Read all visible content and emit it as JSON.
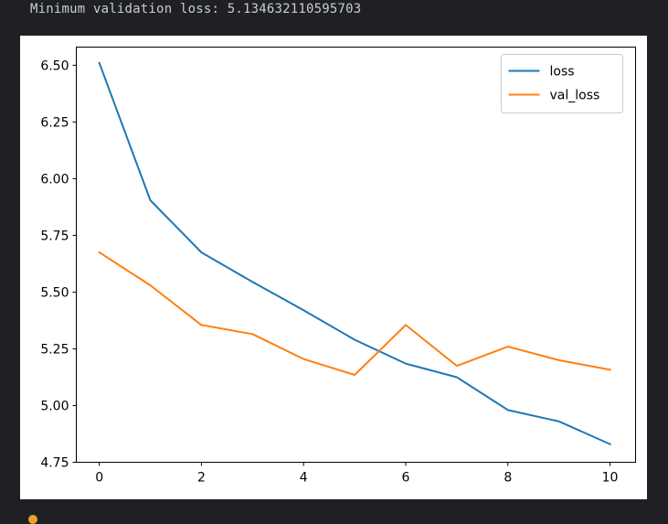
{
  "output": {
    "text": "Minimum validation loss: 5.134632110595703"
  },
  "chart_data": {
    "type": "line",
    "title": "",
    "xlabel": "",
    "ylabel": "",
    "x": [
      0,
      1,
      2,
      3,
      4,
      5,
      6,
      7,
      8,
      9,
      10
    ],
    "series": [
      {
        "name": "loss",
        "color": "#1f77b4",
        "values": [
          6.51,
          5.905,
          5.675,
          5.545,
          5.42,
          5.29,
          5.185,
          5.125,
          4.98,
          4.93,
          4.83
        ]
      },
      {
        "name": "val_loss",
        "color": "#ff7f0e",
        "values": [
          5.675,
          5.53,
          5.355,
          5.315,
          5.205,
          5.135,
          5.355,
          5.175,
          5.26,
          5.2,
          5.158
        ]
      }
    ],
    "xlim": [
      -0.45,
      10.5
    ],
    "ylim": [
      4.75,
      6.58
    ],
    "xticks": [
      "0",
      "2",
      "4",
      "6",
      "8",
      "10"
    ],
    "yticks": [
      "4.75",
      "5.00",
      "5.25",
      "5.50",
      "5.75",
      "6.00",
      "6.25",
      "6.50"
    ],
    "grid": false,
    "legend_position": "top-right"
  }
}
